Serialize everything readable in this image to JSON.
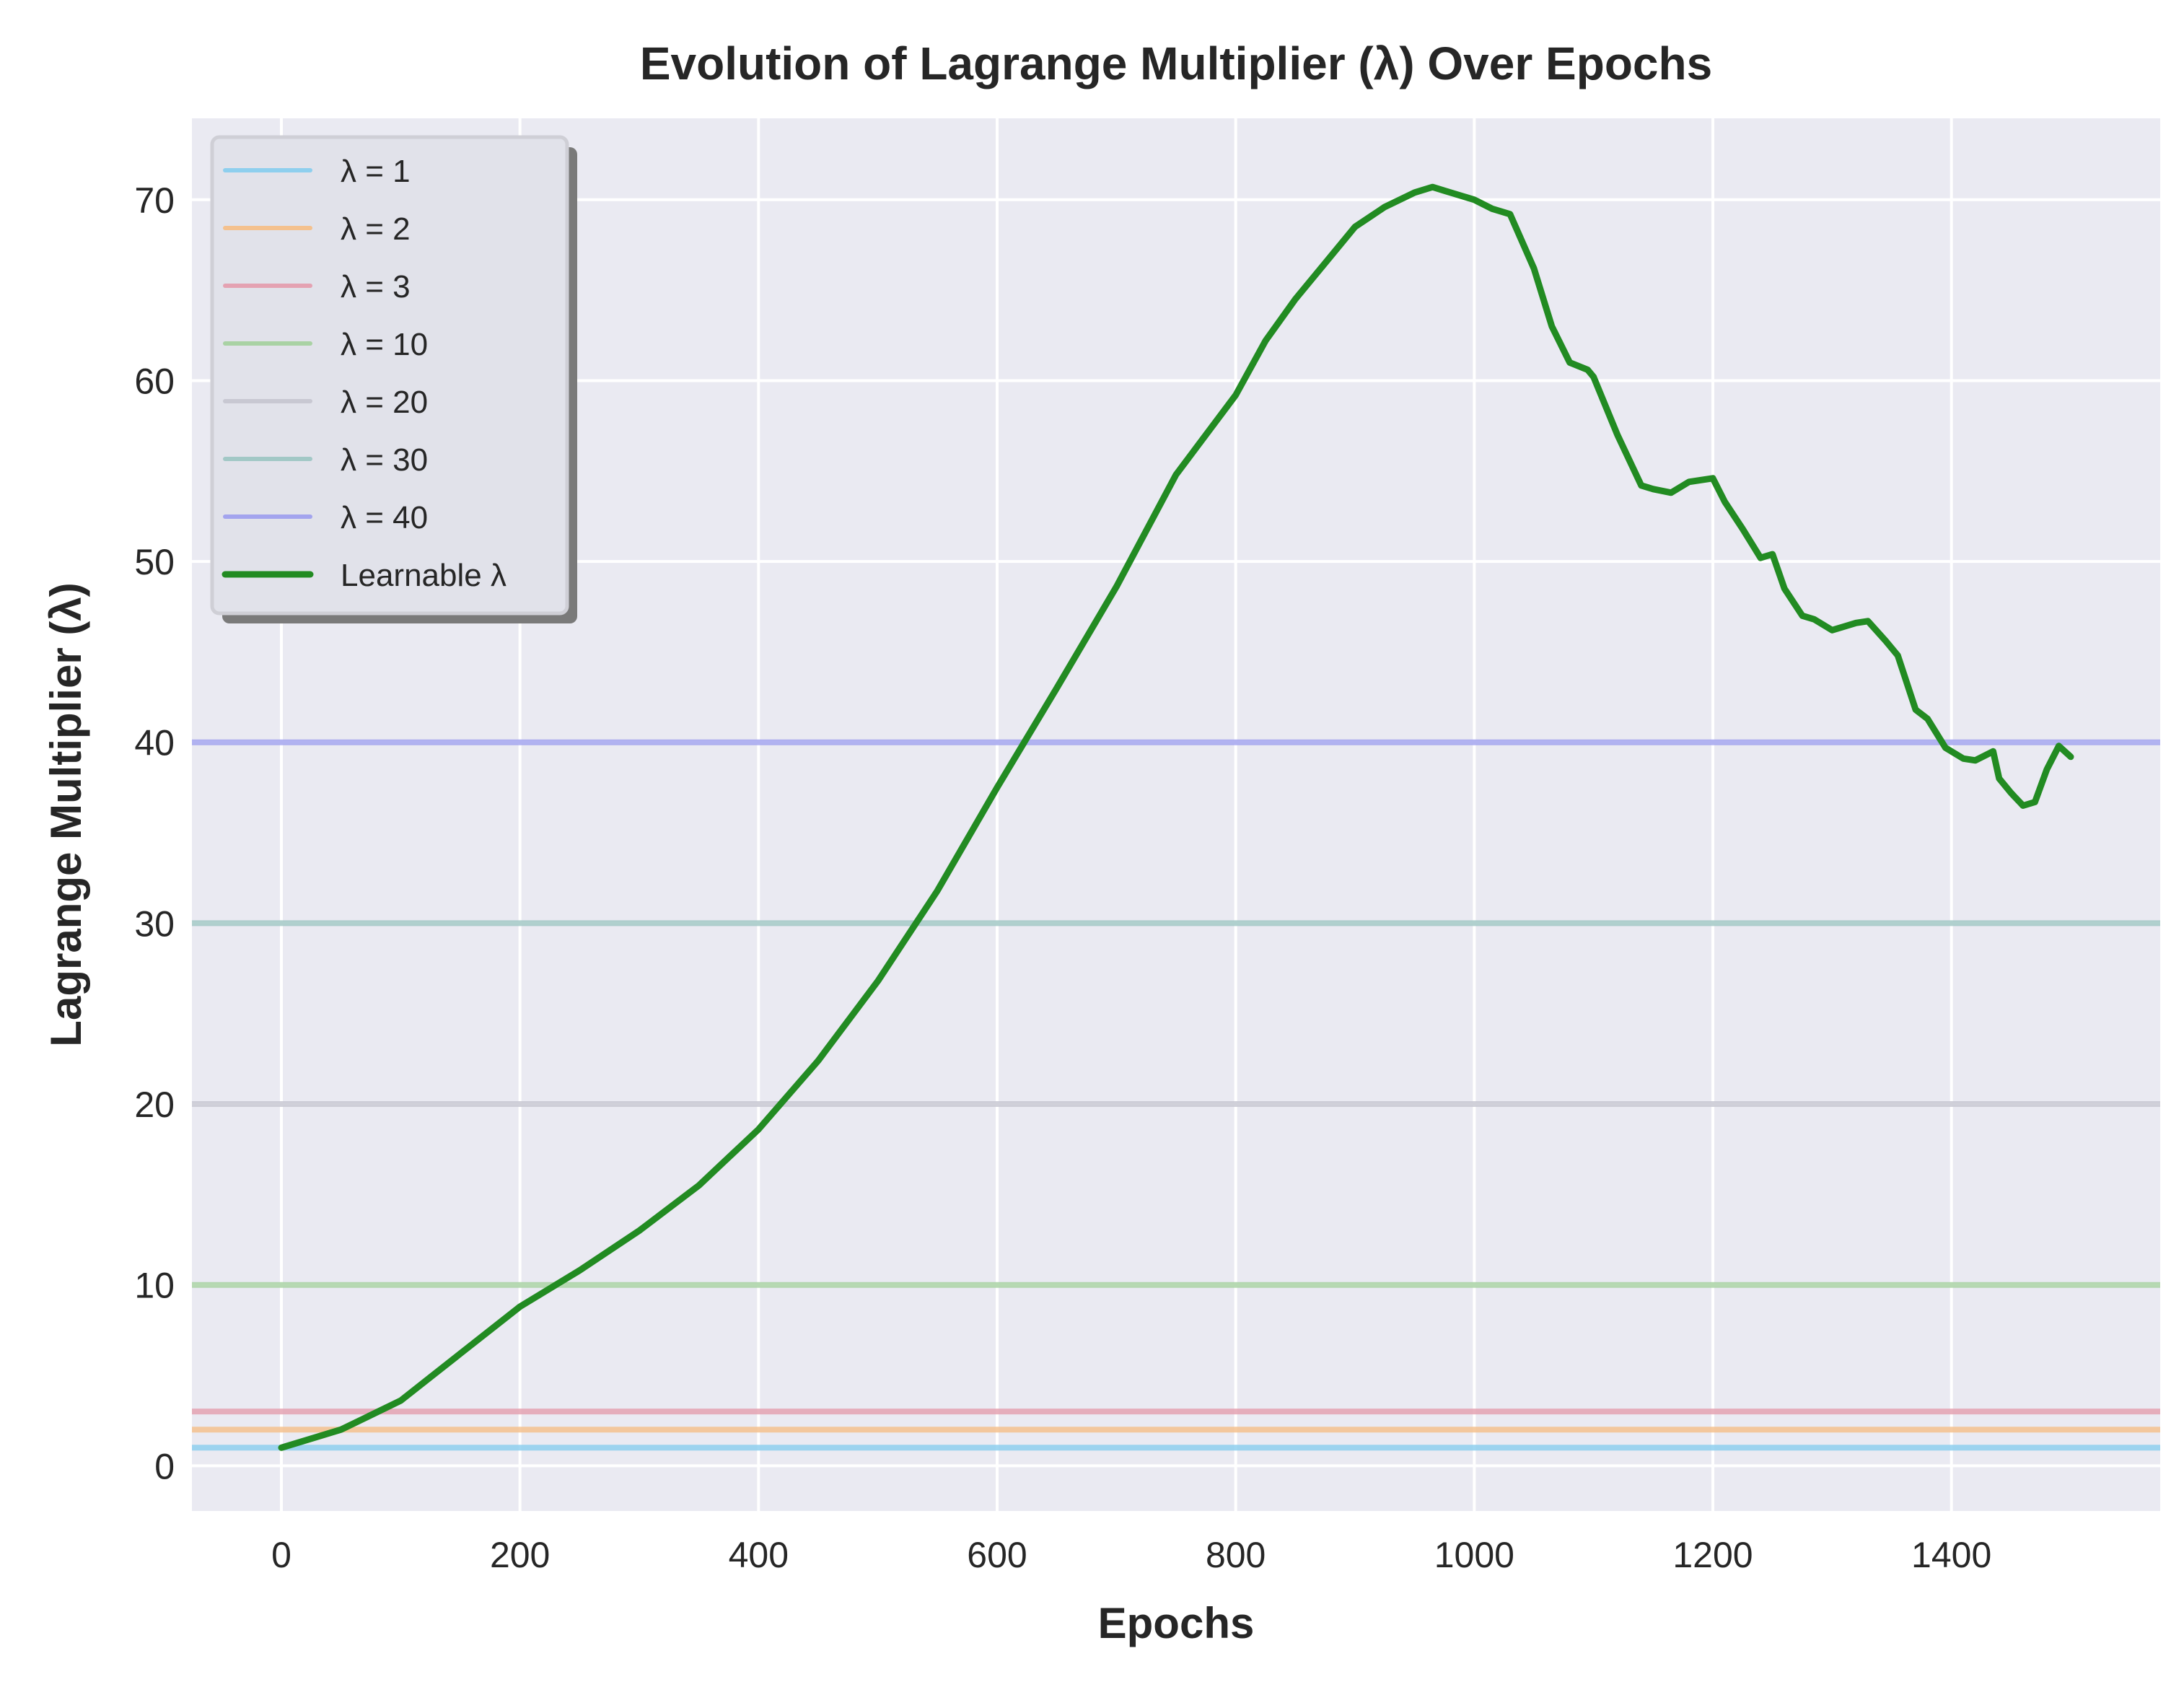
{
  "chart_data": {
    "type": "line",
    "title": "Evolution of Lagrange Multiplier (λ) Over Epochs",
    "xlabel": "Epochs",
    "ylabel": "Lagrange Multiplier (λ)",
    "xlim": [
      -75,
      1575
    ],
    "ylim": [
      -2.5,
      74.5
    ],
    "xticks": [
      0,
      200,
      400,
      600,
      800,
      1000,
      1200,
      1400
    ],
    "yticks": [
      0,
      10,
      20,
      30,
      40,
      50,
      60,
      70
    ],
    "grid": true,
    "legend_position": "top-left",
    "background_color": "#eaeaf2",
    "fixed_lines": [
      {
        "name": "λ = 1",
        "value": 1,
        "color": "#8ecfee"
      },
      {
        "name": "λ = 2",
        "value": 2,
        "color": "#f4c18e"
      },
      {
        "name": "λ = 3",
        "value": 3,
        "color": "#e4a2b2"
      },
      {
        "name": "λ = 10",
        "value": 10,
        "color": "#a9d2a4"
      },
      {
        "name": "λ = 20",
        "value": 20,
        "color": "#c8c8d2"
      },
      {
        "name": "λ = 30",
        "value": 30,
        "color": "#a2c8c6"
      },
      {
        "name": "λ = 40",
        "value": 40,
        "color": "#a3a4ee"
      }
    ],
    "series": [
      {
        "name": "Learnable λ",
        "color": "#228b22",
        "x": [
          0,
          50,
          100,
          150,
          200,
          250,
          300,
          350,
          400,
          450,
          500,
          550,
          600,
          650,
          700,
          750,
          800,
          825,
          850,
          875,
          900,
          925,
          950,
          965,
          975,
          1000,
          1015,
          1030,
          1050,
          1065,
          1080,
          1095,
          1100,
          1120,
          1140,
          1150,
          1165,
          1180,
          1200,
          1210,
          1225,
          1240,
          1250,
          1260,
          1275,
          1285,
          1300,
          1310,
          1320,
          1330,
          1345,
          1355,
          1370,
          1380,
          1395,
          1410,
          1420,
          1435,
          1440,
          1450,
          1460,
          1470,
          1480,
          1490,
          1500
        ],
        "values": [
          1.0,
          2.0,
          3.6,
          6.2,
          8.8,
          10.8,
          13.0,
          15.5,
          18.6,
          22.4,
          26.8,
          31.8,
          37.5,
          43.0,
          48.6,
          54.8,
          59.2,
          62.2,
          64.5,
          66.5,
          68.5,
          69.6,
          70.4,
          70.7,
          70.5,
          70.0,
          69.5,
          69.2,
          66.2,
          63.0,
          61.0,
          60.6,
          60.2,
          57.0,
          54.2,
          54.0,
          53.8,
          54.4,
          54.6,
          53.3,
          51.8,
          50.2,
          50.4,
          48.5,
          47.0,
          46.8,
          46.2,
          46.4,
          46.6,
          46.7,
          45.6,
          44.8,
          41.8,
          41.3,
          39.7,
          39.1,
          39.0,
          39.5,
          38.0,
          37.2,
          36.5,
          36.7,
          38.5,
          39.8,
          39.2
        ]
      }
    ]
  }
}
